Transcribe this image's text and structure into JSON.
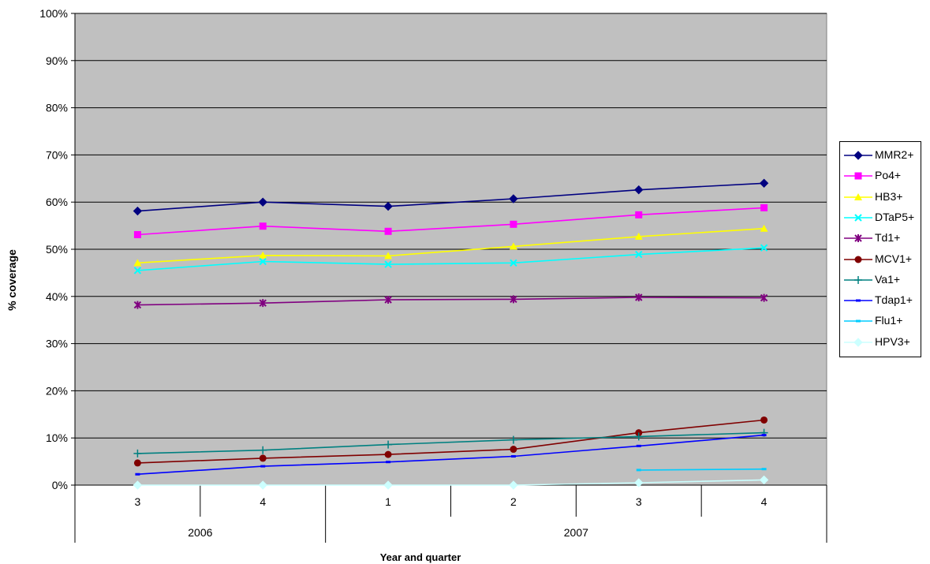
{
  "chart_data": {
    "type": "line",
    "xlabel": "Year and quarter",
    "ylabel": "% coverage",
    "ylim": [
      0,
      100
    ],
    "yticks": [
      "0%",
      "10%",
      "20%",
      "30%",
      "40%",
      "50%",
      "60%",
      "70%",
      "80%",
      "90%",
      "100%"
    ],
    "categories": [
      "3",
      "4",
      "1",
      "2",
      "3",
      "4"
    ],
    "category_groups": [
      {
        "label": "2006",
        "count": 2
      },
      {
        "label": "2007",
        "count": 4
      }
    ],
    "grid": true,
    "legend_position": "right",
    "plot_background": "#c0c0c0",
    "series": [
      {
        "name": "MMR2+",
        "color": "#000080",
        "marker": "diamond",
        "values": [
          58.1,
          60.0,
          59.1,
          60.7,
          62.6,
          64.0
        ]
      },
      {
        "name": "Po4+",
        "color": "#ff00ff",
        "marker": "square",
        "values": [
          53.1,
          54.9,
          53.8,
          55.3,
          57.3,
          58.8
        ]
      },
      {
        "name": "HB3+",
        "color": "#ffff00",
        "marker": "triangle",
        "values": [
          47.1,
          48.7,
          48.6,
          50.6,
          52.7,
          54.4
        ]
      },
      {
        "name": "DTaP5+",
        "color": "#00ffff",
        "marker": "x",
        "values": [
          45.5,
          47.4,
          46.8,
          47.1,
          48.9,
          50.3
        ]
      },
      {
        "name": "Td1+",
        "color": "#800080",
        "marker": "star",
        "values": [
          38.2,
          38.6,
          39.3,
          39.4,
          39.8,
          39.7
        ]
      },
      {
        "name": "MCV1+",
        "color": "#800000",
        "marker": "circle",
        "values": [
          4.7,
          5.7,
          6.5,
          7.6,
          11.1,
          13.8
        ]
      },
      {
        "name": "Va1+",
        "color": "#008080",
        "marker": "plus",
        "values": [
          6.7,
          7.4,
          8.6,
          9.6,
          10.3,
          11.1
        ]
      },
      {
        "name": "Tdap1+",
        "color": "#0000ff",
        "marker": "dash",
        "values": [
          2.3,
          4.0,
          4.9,
          6.1,
          8.3,
          10.6
        ]
      },
      {
        "name": "Flu1+",
        "color": "#00ccff",
        "marker": "dash",
        "values": [
          null,
          null,
          null,
          null,
          3.2,
          3.4
        ]
      },
      {
        "name": "HPV3+",
        "color": "#ccffff",
        "marker": "diamond",
        "values": [
          0.0,
          0.0,
          0.0,
          0.0,
          0.5,
          1.1
        ]
      }
    ]
  }
}
